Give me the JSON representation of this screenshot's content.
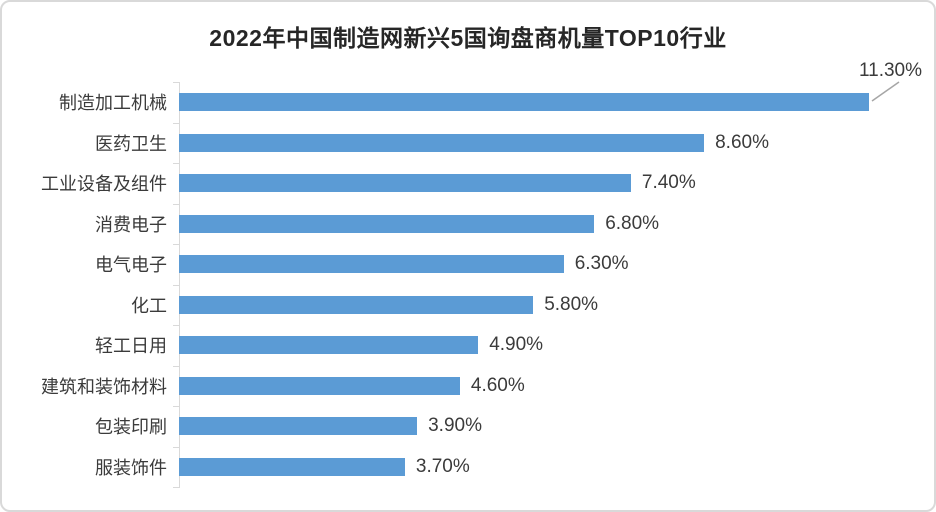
{
  "chart_data": {
    "type": "bar",
    "orientation": "horizontal",
    "title": "2022年中国制造网新兴5国询盘商机量TOP10行业",
    "categories": [
      "制造加工机械",
      "医药卫生",
      "工业设备及组件",
      "消费电子",
      "电气电子",
      "化工",
      "轻工日用",
      "建筑和装饰材料",
      "包装印刷",
      "服装饰件"
    ],
    "values": [
      11.3,
      8.6,
      7.4,
      6.8,
      6.3,
      5.8,
      4.9,
      4.6,
      3.9,
      3.7
    ],
    "labels": [
      "11.30%",
      "8.60%",
      "7.40%",
      "6.80%",
      "6.30%",
      "5.80%",
      "4.90%",
      "4.60%",
      "3.90%",
      "3.70%"
    ],
    "unit": "%",
    "xlim": [
      0,
      12
    ],
    "grid": "off",
    "legend": "none",
    "bar_color": "#5b9bd5",
    "axis_color": "#d9d9d9",
    "leader_line_color": "#a6a6a6",
    "callout": {
      "category": "制造加工机械",
      "label": "11.30%"
    }
  }
}
